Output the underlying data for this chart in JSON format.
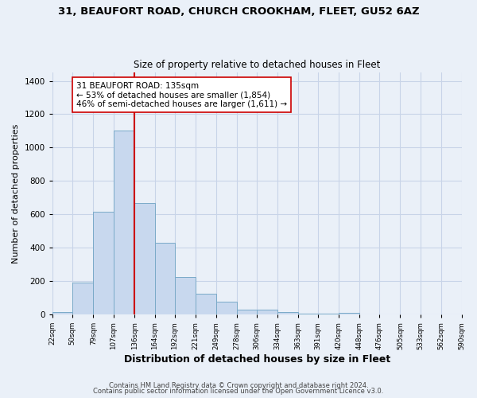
{
  "title_line1": "31, BEAUFORT ROAD, CHURCH CROOKHAM, FLEET, GU52 6AZ",
  "title_line2": "Size of property relative to detached houses in Fleet",
  "xlabel": "Distribution of detached houses by size in Fleet",
  "ylabel": "Number of detached properties",
  "bar_edges": [
    22,
    50,
    79,
    107,
    136,
    164,
    192,
    221,
    249,
    278,
    306,
    334,
    363,
    391,
    420,
    448,
    476,
    505,
    533,
    562,
    590
  ],
  "bar_heights": [
    15,
    193,
    614,
    1103,
    670,
    430,
    224,
    124,
    78,
    30,
    27,
    15,
    7,
    5,
    10,
    0,
    0,
    0,
    0,
    0
  ],
  "bar_color": "#c8d8ee",
  "bar_edgecolor": "#7aaac8",
  "grid_color": "#c8d4e8",
  "bg_color": "#eaf0f8",
  "vline_x": 136,
  "vline_color": "#cc0000",
  "annotation_line1": "31 BEAUFORT ROAD: 135sqm",
  "annotation_line2": "← 53% of detached houses are smaller (1,854)",
  "annotation_line3": "46% of semi-detached houses are larger (1,611) →",
  "annotation_box_edgecolor": "#cc0000",
  "annotation_box_facecolor": "#ffffff",
  "ylim": [
    0,
    1450
  ],
  "xlim": [
    22,
    590
  ],
  "yticks": [
    0,
    200,
    400,
    600,
    800,
    1000,
    1200,
    1400
  ],
  "tick_labels": [
    "22sqm",
    "50sqm",
    "79sqm",
    "107sqm",
    "136sqm",
    "164sqm",
    "192sqm",
    "221sqm",
    "249sqm",
    "278sqm",
    "306sqm",
    "334sqm",
    "363sqm",
    "391sqm",
    "420sqm",
    "448sqm",
    "476sqm",
    "505sqm",
    "533sqm",
    "562sqm",
    "590sqm"
  ],
  "footer_line1": "Contains HM Land Registry data © Crown copyright and database right 2024.",
  "footer_line2": "Contains public sector information licensed under the Open Government Licence v3.0."
}
